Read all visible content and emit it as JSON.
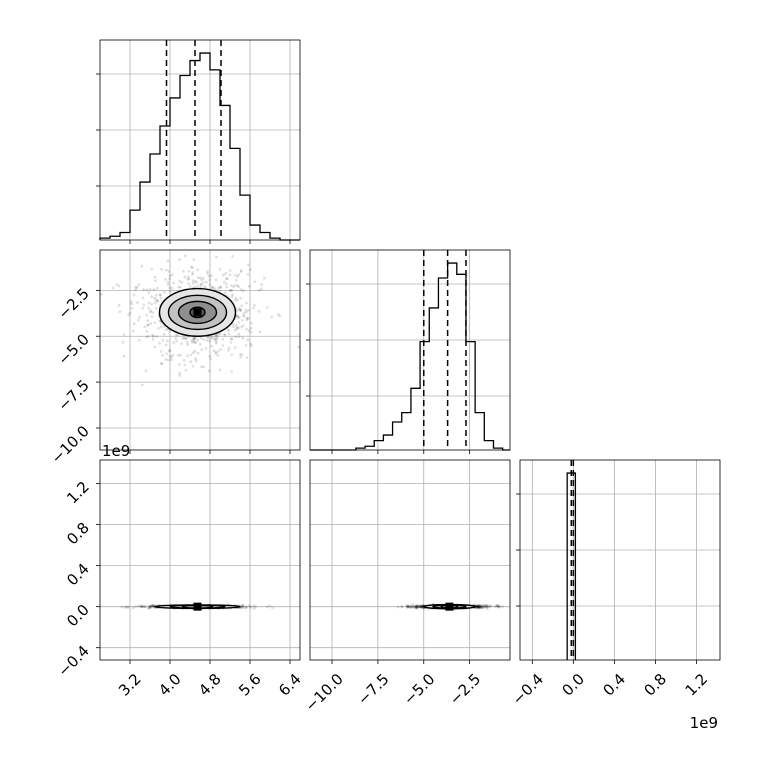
{
  "chart_data": {
    "type": "corner",
    "grid": true,
    "colors": {
      "line": "#000000",
      "grid": "#b0b0b0",
      "density": "#555555"
    },
    "params": [
      {
        "xlim": [
          2.6,
          6.6
        ],
        "xticks": [
          "3.2",
          "4.0",
          "4.8",
          "5.6",
          "6.4"
        ],
        "xtick_values": [
          3.2,
          4.0,
          4.8,
          5.6,
          6.4
        ]
      },
      {
        "xlim": [
          -11.2,
          -0.3
        ],
        "xticks": [
          "−10.0",
          "−7.5",
          "−5.0",
          "−2.5"
        ],
        "xtick_values": [
          -10.0,
          -7.5,
          -5.0,
          -2.5
        ],
        "yticks": [
          "−2.5",
          "−5.0",
          "−7.5",
          "−10.0"
        ],
        "ytick_values": [
          -2.5,
          -5.0,
          -7.5,
          -10.0
        ]
      },
      {
        "xlim": [
          -0.52,
          1.43
        ],
        "xticks": [
          "−0.4",
          "0.0",
          "0.4",
          "0.8",
          "1.2"
        ],
        "xtick_values": [
          -0.4,
          0.0,
          0.4,
          0.8,
          1.2
        ],
        "yticks": [
          "−0.4",
          "0.0",
          "0.4",
          "0.8",
          "1.2"
        ],
        "ytick_values": [
          -0.4,
          0.0,
          0.4,
          0.8,
          1.2
        ],
        "offset_label": "1e9"
      }
    ],
    "panels": [
      {
        "row": 0,
        "col": 0,
        "type": "histogram",
        "bin_edges": [
          2.6,
          2.8,
          3.0,
          3.2,
          3.4,
          3.6,
          3.8,
          4.0,
          4.2,
          4.4,
          4.6,
          4.8,
          5.0,
          5.2,
          5.4,
          5.6,
          5.8,
          6.0,
          6.2,
          6.4,
          6.6
        ],
        "counts": [
          0.01,
          0.02,
          0.04,
          0.16,
          0.31,
          0.46,
          0.61,
          0.76,
          0.88,
          0.96,
          1.0,
          0.91,
          0.72,
          0.49,
          0.24,
          0.08,
          0.04,
          0.01,
          0.0,
          0.0
        ],
        "quantiles": [
          3.93,
          4.5,
          5.02
        ]
      },
      {
        "row": 1,
        "col": 1,
        "type": "histogram",
        "bin_edges": [
          -11.2,
          -10.7,
          -10.2,
          -9.7,
          -9.2,
          -8.7,
          -8.2,
          -7.7,
          -7.2,
          -6.7,
          -6.2,
          -5.7,
          -5.2,
          -4.7,
          -4.2,
          -3.7,
          -3.2,
          -2.7,
          -2.2,
          -1.7,
          -1.2,
          -0.7,
          -0.3
        ],
        "counts": [
          0.0,
          0.0,
          0.0,
          0.0,
          0.0,
          0.01,
          0.02,
          0.05,
          0.08,
          0.15,
          0.2,
          0.33,
          0.58,
          0.76,
          0.92,
          1.0,
          0.94,
          0.58,
          0.2,
          0.05,
          0.01,
          0.0
        ],
        "quantiles": [
          -5.0,
          -3.7,
          -2.7
        ]
      },
      {
        "row": 2,
        "col": 2,
        "type": "histogram",
        "bin_edges": [
          -0.06,
          0.02
        ],
        "counts": [
          1.0
        ],
        "quantiles": [
          -0.02,
          0.0
        ]
      },
      {
        "row": 1,
        "col": 0,
        "type": "density2d",
        "peak": [
          4.55,
          -3.7
        ],
        "sigma": [
          0.55,
          1.1
        ],
        "contour_levels": [
          [
            0.15,
            0.28
          ],
          [
            0.38,
            0.6
          ],
          [
            0.58,
            0.93
          ],
          [
            0.76,
            1.3
          ]
        ]
      },
      {
        "row": 2,
        "col": 0,
        "type": "density2d",
        "peak": [
          4.55,
          0.0
        ],
        "sigma": [
          0.45,
          0.006
        ],
        "contour_levels": [
          [
            0.85,
            0.017
          ],
          [
            0.55,
            0.01
          ],
          [
            0.3,
            0.005
          ]
        ]
      },
      {
        "row": 2,
        "col": 1,
        "type": "density2d",
        "peak": [
          -3.6,
          0.0
        ],
        "sigma": [
          1.0,
          0.006
        ],
        "contour_levels": [
          [
            1.4,
            0.02
          ],
          [
            0.9,
            0.012
          ],
          [
            0.45,
            0.006
          ]
        ]
      }
    ]
  }
}
